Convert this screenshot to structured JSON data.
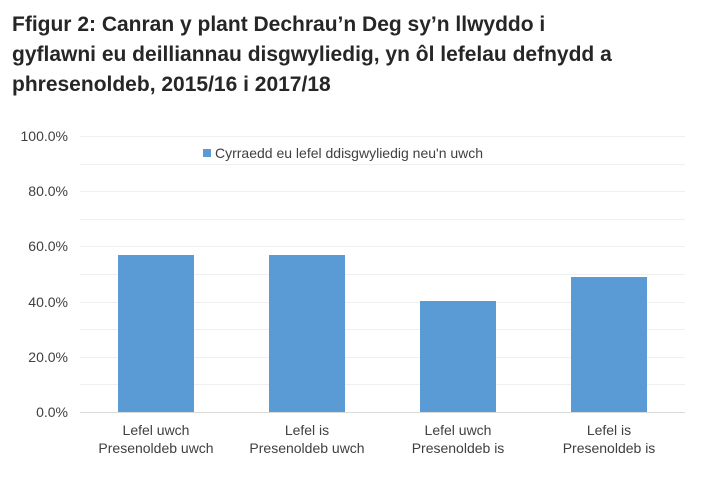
{
  "title": {
    "lines": [
      "Ffigur 2: Canran y plant Dechrau’n Deg sy’n llwyddo i",
      "gyflawni eu deilliannau disgwyliedig, yn ôl lefelau defnydd a",
      "phresenoldeb, 2015/16 i 2017/18"
    ]
  },
  "colors": {
    "bar": "#5b9bd5",
    "gridline": "#efefef",
    "axis": "#d9d9d9",
    "text": "#404040",
    "title": "#262626"
  },
  "chart_data": {
    "type": "bar",
    "title": "Ffigur 2: Canran y plant Dechrau’n Deg sy’n llwyddo i gyflawni eu deilliannau disgwyliedig, yn ôl lefelau defnydd a phresenoldeb, 2015/16 i 2017/18",
    "categories": [
      "Lefel uwch Presenoldeb uwch",
      "Lefel is Presenoldeb uwch",
      "Lefel uwch Presenoldeb is",
      "Lefel is Presenoldeb is"
    ],
    "category_lines": [
      [
        "Lefel uwch",
        "Presenoldeb uwch"
      ],
      [
        "Lefel is",
        "Presenoldeb uwch"
      ],
      [
        "Lefel uwch",
        "Presenoldeb is"
      ],
      [
        "Lefel is",
        "Presenoldeb is"
      ]
    ],
    "series": [
      {
        "name": "Cyrraedd eu lefel ddisgwyliedig neu'n uwch",
        "values": [
          56.9,
          56.9,
          40.2,
          48.9
        ],
        "color": "#5b9bd5"
      }
    ],
    "xlabel": "",
    "ylabel": "",
    "ylim": [
      0,
      100
    ],
    "yticks": [
      "0.0%",
      "20.0%",
      "40.0%",
      "60.0%",
      "80.0%",
      "100.0%"
    ],
    "grid": true,
    "minor_grid_step": 10,
    "legend_position": "top"
  }
}
